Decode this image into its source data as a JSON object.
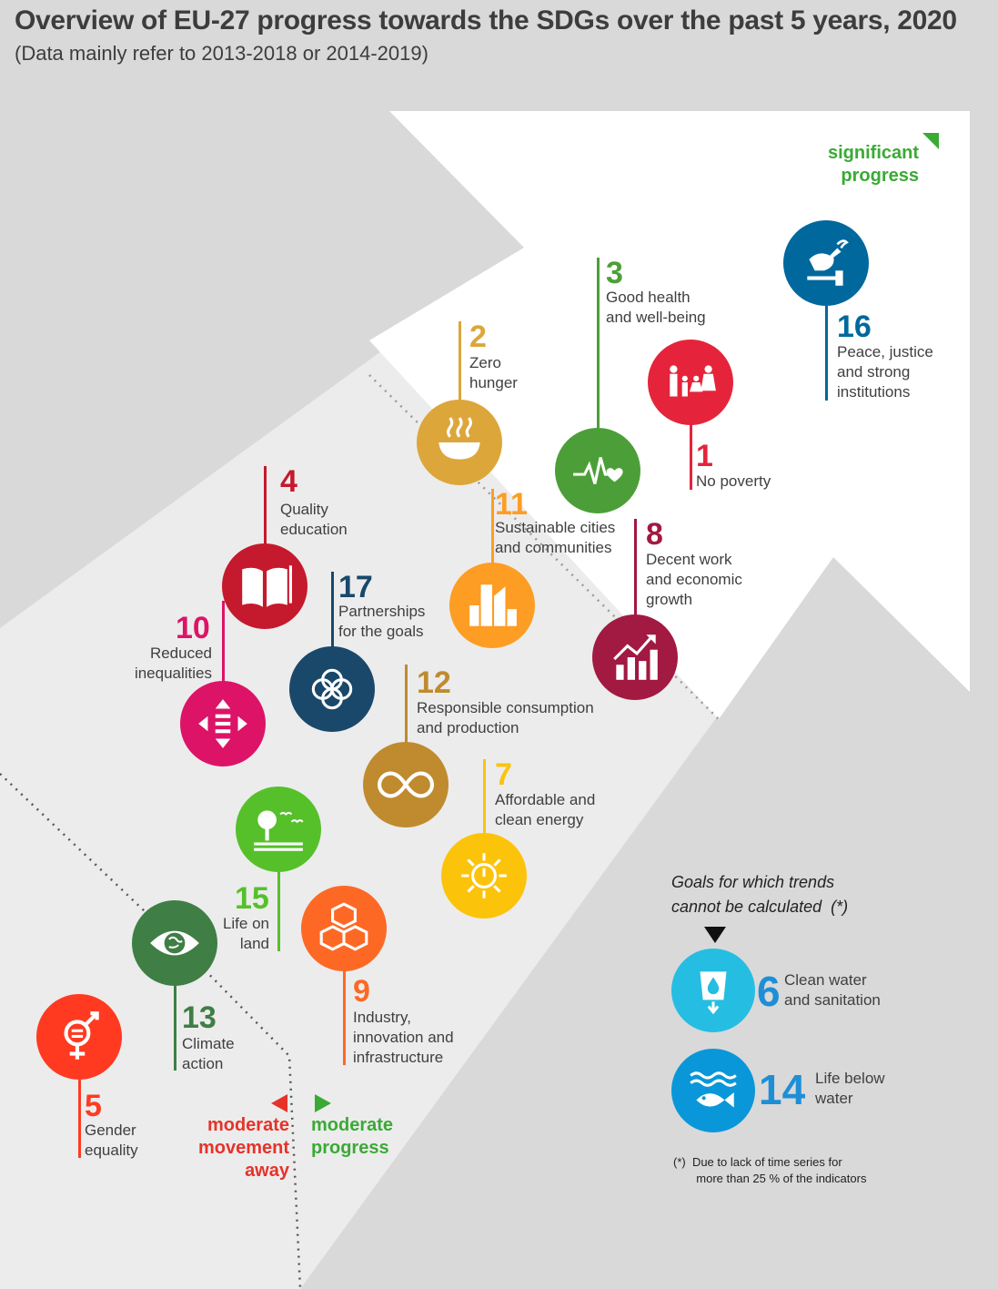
{
  "title": "Overview of EU-27 progress towards the SDGs over the past 5 years, 2020",
  "subtitle": "(Data mainly refer to 2013-2018 or 2014-2019)",
  "indicators": {
    "significant": "significant\nprogress",
    "moderate_progress": "moderate\nprogress",
    "moderate_away": "moderate\nmovement\naway",
    "color_green": "#3aaa35",
    "color_red": "#e5332a"
  },
  "chart_data": {
    "type": "scatter",
    "title": "Overview of EU-27 progress towards the SDGs over the past 5 years, 2020",
    "subtitle": "(Data mainly refer to 2013-2018 or 2014-2019)",
    "categories": [
      "moderate movement away",
      "moderate progress",
      "significant progress"
    ],
    "goals": [
      {
        "num": "16",
        "label": "Peace, justice\nand strong\ninstitutions",
        "color": "#00689d",
        "icon": "dove-gavel-icon",
        "category": "significant progress"
      },
      {
        "num": "3",
        "label": "Good health\nand well-being",
        "color": "#4c9f38",
        "icon": "heartbeat-icon",
        "category": "significant progress"
      },
      {
        "num": "1",
        "label": "No poverty",
        "color": "#e5243b",
        "icon": "family-icon",
        "category": "significant progress"
      },
      {
        "num": "2",
        "label": "Zero\nhunger",
        "color": "#dda63a",
        "icon": "bowl-icon",
        "category": "moderate progress"
      },
      {
        "num": "11",
        "label": "Sustainable cities\nand communities",
        "color": "#fd9d24",
        "icon": "city-icon",
        "category": "moderate progress"
      },
      {
        "num": "8",
        "label": "Decent work\nand economic\ngrowth",
        "color": "#a21942",
        "icon": "growth-chart-icon",
        "category": "moderate progress"
      },
      {
        "num": "4",
        "label": "Quality\neducation",
        "color": "#c5192d",
        "icon": "book-icon",
        "category": "moderate progress"
      },
      {
        "num": "17",
        "label": "Partnerships\nfor the goals",
        "color": "#19486a",
        "icon": "rings-icon",
        "category": "moderate progress"
      },
      {
        "num": "10",
        "label": "Reduced\ninequalities",
        "color": "#dd1367",
        "icon": "equality-arrows-icon",
        "category": "moderate progress"
      },
      {
        "num": "12",
        "label": "Responsible consumption\nand production",
        "color": "#bf8b2e",
        "icon": "infinity-icon",
        "category": "moderate progress"
      },
      {
        "num": "7",
        "label": "Affordable and\nclean energy",
        "color": "#fcc30b",
        "icon": "sun-power-icon",
        "category": "moderate progress"
      },
      {
        "num": "15",
        "label": "Life on\nland",
        "color": "#56c02b",
        "icon": "tree-birds-icon",
        "category": "moderate progress"
      },
      {
        "num": "9",
        "label": "Industry,\ninnovation and\ninfrastructure",
        "color": "#fd6925",
        "icon": "cubes-icon",
        "category": "moderate progress"
      },
      {
        "num": "13",
        "label": "Climate\naction",
        "color": "#3f7e44",
        "icon": "eye-globe-icon",
        "category": "moderate movement away"
      },
      {
        "num": "5",
        "label": "Gender\nequality",
        "color": "#ff3a21",
        "icon": "gender-icon",
        "category": "moderate movement away"
      }
    ],
    "not_calculated": {
      "heading": "Goals for which trends\ncannot be calculated  (*)",
      "goals": [
        {
          "num": "6",
          "label": "Clean water\nand sanitation",
          "color": "#26bde2",
          "icon": "water-icon"
        },
        {
          "num": "14",
          "label": "Life below\nwater",
          "color": "#0a97d9",
          "icon": "fish-icon"
        }
      ],
      "footnote": "(*)  Due to lack of time series for\n       more than 25 % of the indicators"
    }
  }
}
